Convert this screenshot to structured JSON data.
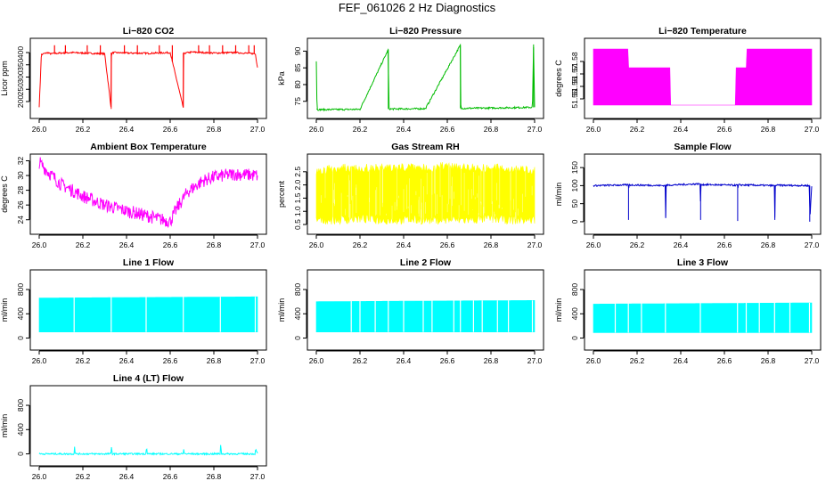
{
  "page": {
    "title": "FEF_061026  2 Hz Diagnostics"
  },
  "colors": {
    "co2": "#ff0000",
    "pressure": "#00bb00",
    "temperature": "#ff00ff",
    "ambient": "#ff00ff",
    "rh": "#ffff00",
    "sample_flow": "#0000cc",
    "line_flow": "#00ffff"
  },
  "chart_data": [
    {
      "type": "line",
      "title": "Li−820 CO2",
      "ylabel": "Licor ppm",
      "xlim": [
        26.0,
        27.0
      ],
      "ylim": [
        160,
        440
      ],
      "xticks": [
        "26.0",
        "26.2",
        "26.4",
        "26.6",
        "26.8",
        "27.0"
      ],
      "xtick_values": [
        26.0,
        26.2,
        26.4,
        26.6,
        26.8,
        27.0
      ],
      "yticks": [
        "200",
        "250",
        "300",
        "350",
        "400"
      ],
      "ytick_values": [
        200,
        250,
        300,
        350,
        400
      ],
      "series": [
        {
          "color": "#ff0000",
          "x": [
            26.0,
            26.01,
            26.02,
            26.04,
            26.05,
            26.1,
            26.15,
            26.2,
            26.3,
            26.33,
            26.331,
            26.34,
            26.4,
            26.5,
            26.6,
            26.66,
            26.661,
            26.67,
            26.7,
            26.8,
            26.9,
            26.99,
            27.0
          ],
          "y": [
            180,
            390,
            395,
            400,
            395,
            398,
            400,
            398,
            395,
            170,
            395,
            400,
            398,
            397,
            400,
            175,
            395,
            398,
            402,
            398,
            400,
            395,
            340
          ]
        }
      ],
      "spikes": [
        26.07,
        26.12,
        26.22,
        26.28,
        26.39,
        26.45,
        26.55,
        26.61,
        26.73,
        26.78,
        26.84,
        26.9,
        26.96,
        26.985
      ],
      "spike_level": 430
    },
    {
      "type": "line",
      "title": "Li−820 Pressure",
      "ylabel": "kPa",
      "xlim": [
        26.0,
        27.0
      ],
      "ylim": [
        72,
        92.5
      ],
      "xticks": [
        "26.0",
        "26.2",
        "26.4",
        "26.6",
        "26.8",
        "27.0"
      ],
      "xtick_values": [
        26.0,
        26.2,
        26.4,
        26.6,
        26.8,
        27.0
      ],
      "yticks": [
        "75",
        "80",
        "85",
        "90"
      ],
      "ytick_values": [
        75,
        80,
        85,
        90
      ],
      "series": [
        {
          "color": "#00bb00",
          "x": [
            26.0,
            26.003,
            26.006,
            26.2,
            26.33,
            26.332,
            26.334,
            26.5,
            26.66,
            26.662,
            26.665,
            26.8,
            26.99,
            26.995,
            27.0
          ],
          "y": [
            87,
            72.8,
            72.5,
            72.6,
            90.5,
            72.7,
            72.7,
            72.8,
            91.8,
            72.9,
            72.9,
            73.0,
            73.2,
            92.0,
            73.2
          ]
        }
      ]
    },
    {
      "type": "area",
      "title": "Li−820 Temperature",
      "ylabel": "degrees C",
      "xlim": [
        26.0,
        27.0
      ],
      "ylim": [
        51.54,
        51.595
      ],
      "xticks": [
        "26.0",
        "26.2",
        "26.4",
        "26.6",
        "26.8",
        "27.0"
      ],
      "xtick_values": [
        26.0,
        26.2,
        26.4,
        26.6,
        26.8,
        27.0
      ],
      "yticks": [
        "51.55",
        "51.56",
        "51.57",
        "51.58"
      ],
      "ytick_values": [
        51.55,
        51.56,
        51.57,
        51.58
      ],
      "series": [
        {
          "color": "#ff00ff",
          "x": [
            26.0,
            26.16,
            26.16,
            26.35,
            26.35,
            26.65,
            26.65,
            26.7,
            26.7,
            27.0
          ],
          "low": [
            51.545,
            51.545,
            51.545,
            51.545,
            51.545,
            51.545,
            51.545,
            51.545,
            51.545,
            51.545
          ],
          "high": [
            51.59,
            51.59,
            51.575,
            51.575,
            51.545,
            51.545,
            51.575,
            51.575,
            51.59,
            51.59
          ]
        }
      ]
    },
    {
      "type": "line",
      "title": "Ambient Box Temperature",
      "ylabel": "degrees C",
      "xlim": [
        26.0,
        27.0
      ],
      "ylim": [
        23,
        32.3
      ],
      "xticks": [
        "26.0",
        "26.2",
        "26.4",
        "26.6",
        "26.8",
        "27.0"
      ],
      "xtick_values": [
        26.0,
        26.2,
        26.4,
        26.6,
        26.8,
        27.0
      ],
      "yticks": [
        "24",
        "26",
        "28",
        "30",
        "32"
      ],
      "ytick_values": [
        24,
        26,
        28,
        30,
        32
      ],
      "series": [
        {
          "color": "#ff00ff",
          "x": [
            26.0,
            26.05,
            26.1,
            26.2,
            26.3,
            26.4,
            26.5,
            26.55,
            26.6,
            26.63,
            26.68,
            26.75,
            26.8,
            26.9,
            27.0
          ],
          "y": [
            31.8,
            30.2,
            28.8,
            27.2,
            26.0,
            25.2,
            24.5,
            24.1,
            23.8,
            25.5,
            27.8,
            29.3,
            29.8,
            30.2,
            30.0
          ]
        }
      ],
      "band": 0.9
    },
    {
      "type": "area",
      "title": "Gas Stream RH",
      "ylabel": "percent",
      "xlim": [
        26.0,
        27.0
      ],
      "ylim": [
        0.4,
        3.0
      ],
      "xticks": [
        "26.0",
        "26.2",
        "26.4",
        "26.6",
        "26.8",
        "27.0"
      ],
      "xtick_values": [
        26.0,
        26.2,
        26.4,
        26.6,
        26.8,
        27.0
      ],
      "yticks": [
        "0.5",
        "1.0",
        "1.5",
        "2.0",
        "2.5"
      ],
      "ytick_values": [
        0.5,
        1.0,
        1.5,
        2.0,
        2.5
      ],
      "series": [
        {
          "color": "#ffff00",
          "x": [
            26.0,
            26.1,
            26.2,
            26.3,
            26.4,
            26.5,
            26.6,
            26.7,
            26.8,
            26.9,
            27.0
          ],
          "low": [
            0.5,
            0.5,
            0.55,
            0.5,
            0.5,
            0.5,
            0.5,
            0.5,
            0.55,
            0.5,
            0.5
          ],
          "high": [
            2.7,
            2.8,
            2.8,
            2.8,
            2.85,
            2.8,
            2.9,
            2.85,
            2.8,
            2.8,
            2.7
          ]
        }
      ]
    },
    {
      "type": "line",
      "title": "Sample Flow",
      "ylabel": "ml/min",
      "xlim": [
        26.0,
        27.0
      ],
      "ylim": [
        -15,
        175
      ],
      "xticks": [
        "26.0",
        "26.2",
        "26.4",
        "26.6",
        "26.8",
        "27.0"
      ],
      "xtick_values": [
        26.0,
        26.2,
        26.4,
        26.6,
        26.8,
        27.0
      ],
      "yticks": [
        "0",
        "50",
        "100",
        "150"
      ],
      "ytick_values": [
        0,
        50,
        100,
        150
      ],
      "series": [
        {
          "color": "#0000cc",
          "x": [
            26.0,
            26.16,
            26.161,
            26.162,
            26.33,
            26.331,
            26.332,
            26.49,
            26.491,
            26.492,
            26.66,
            26.661,
            26.662,
            26.83,
            26.831,
            26.832,
            26.99,
            26.991,
            27.0
          ],
          "y": [
            100,
            102,
            5,
            102,
            100,
            10,
            101,
            105,
            5,
            103,
            101,
            2,
            102,
            100,
            5,
            101,
            100,
            0,
            100
          ]
        }
      ]
    },
    {
      "type": "area",
      "title": "Line 1 Flow",
      "ylabel": "ml/min",
      "xlim": [
        26.0,
        27.0
      ],
      "ylim": [
        -80,
        1050
      ],
      "xticks": [
        "26.0",
        "26.2",
        "26.4",
        "26.6",
        "26.8",
        "27.0"
      ],
      "xtick_values": [
        26.0,
        26.2,
        26.4,
        26.6,
        26.8,
        27.0
      ],
      "yticks": [
        "0",
        "400",
        "800"
      ],
      "ytick_values": [
        0,
        400,
        800
      ],
      "series": [
        {
          "color": "#00ffff",
          "x": [
            26.0,
            27.0
          ],
          "low": [
            100,
            100
          ],
          "high": [
            660,
            680
          ]
        }
      ],
      "gaps": [
        26.16,
        26.33,
        26.49,
        26.66,
        26.83,
        26.99
      ]
    },
    {
      "type": "area",
      "title": "Line 2 Flow",
      "ylabel": "ml/min",
      "xlim": [
        26.0,
        27.0
      ],
      "ylim": [
        -80,
        1050
      ],
      "xticks": [
        "26.0",
        "26.2",
        "26.4",
        "26.6",
        "26.8",
        "27.0"
      ],
      "xtick_values": [
        26.0,
        26.2,
        26.4,
        26.6,
        26.8,
        27.0
      ],
      "yticks": [
        "0",
        "400",
        "800"
      ],
      "ytick_values": [
        0,
        400,
        800
      ],
      "series": [
        {
          "color": "#00ffff",
          "x": [
            26.0,
            27.0
          ],
          "low": [
            100,
            100
          ],
          "high": [
            600,
            620
          ]
        }
      ],
      "gaps": [
        26.16,
        26.2,
        26.27,
        26.33,
        26.4,
        26.49,
        26.53,
        26.63,
        26.66,
        26.72,
        26.76,
        26.83,
        26.88,
        26.99
      ]
    },
    {
      "type": "area",
      "title": "Line 3 Flow",
      "ylabel": "ml/min",
      "xlim": [
        26.0,
        27.0
      ],
      "ylim": [
        -80,
        1050
      ],
      "xticks": [
        "26.0",
        "26.2",
        "26.4",
        "26.6",
        "26.8",
        "27.0"
      ],
      "xtick_values": [
        26.0,
        26.2,
        26.4,
        26.6,
        26.8,
        27.0
      ],
      "yticks": [
        "0",
        "400",
        "800"
      ],
      "ytick_values": [
        0,
        400,
        800
      ],
      "series": [
        {
          "color": "#00ffff",
          "x": [
            26.0,
            27.0
          ],
          "low": [
            90,
            90
          ],
          "high": [
            560,
            580
          ]
        }
      ],
      "gaps": [
        26.1,
        26.16,
        26.22,
        26.33,
        26.49,
        26.66,
        26.7,
        26.76,
        26.83,
        26.9,
        26.99
      ]
    },
    {
      "type": "line",
      "title": "Line 4 (LT) Flow",
      "ylabel": "ml/min",
      "xlim": [
        26.0,
        27.0
      ],
      "ylim": [
        -80,
        1050
      ],
      "xticks": [
        "26.0",
        "26.2",
        "26.4",
        "26.6",
        "26.8",
        "27.0"
      ],
      "xtick_values": [
        26.0,
        26.2,
        26.4,
        26.6,
        26.8,
        27.0
      ],
      "yticks": [
        "0",
        "400",
        "800"
      ],
      "ytick_values": [
        0,
        400,
        800
      ],
      "series": [
        {
          "color": "#00ffff",
          "x": [
            26.0,
            26.16,
            26.161,
            26.165,
            26.33,
            26.331,
            26.335,
            26.49,
            26.491,
            26.495,
            26.66,
            26.661,
            26.665,
            26.83,
            26.831,
            26.835,
            26.99,
            26.991,
            27.0
          ],
          "y": [
            0,
            0,
            160,
            0,
            0,
            110,
            0,
            0,
            170,
            0,
            0,
            100,
            0,
            0,
            160,
            0,
            0,
            100,
            0
          ]
        }
      ]
    }
  ]
}
